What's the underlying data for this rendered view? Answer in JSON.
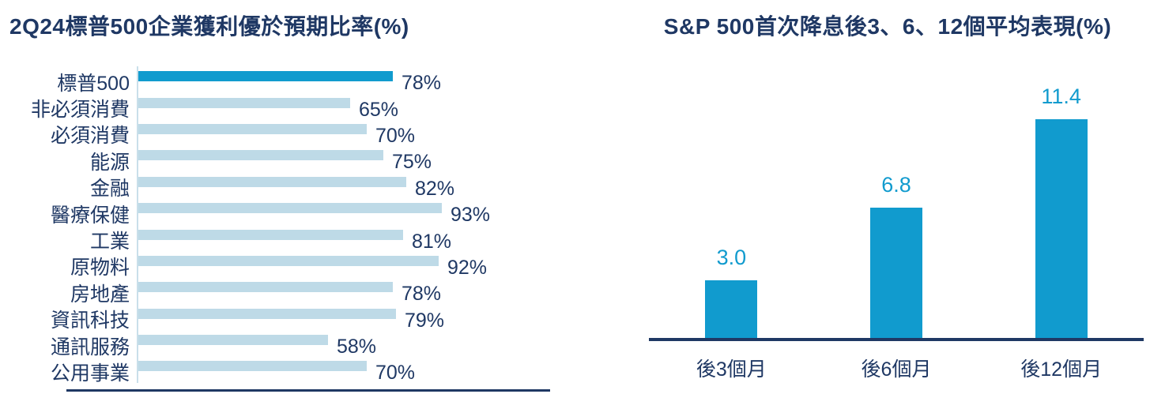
{
  "colors": {
    "navy_text": "#1f3864",
    "accent_cyan": "#119bce",
    "light_blue_bar": "#bedae7",
    "axis_light_blue": "#c9dfea",
    "axis_navy": "#1f3864"
  },
  "chart_data": [
    {
      "type": "bar",
      "orientation": "horizontal",
      "title": "2Q24標普500企業獲利優於預期比率(%)",
      "categories": [
        "標普500",
        "非必須消費",
        "必須消費",
        "能源",
        "金融",
        "醫療保健",
        "工業",
        "原物料",
        "房地產",
        "資訊科技",
        "通訊服務",
        "公用事業"
      ],
      "values": [
        78,
        65,
        70,
        75,
        82,
        93,
        81,
        92,
        78,
        79,
        58,
        70
      ],
      "value_labels": [
        "78%",
        "65%",
        "70%",
        "75%",
        "82%",
        "93%",
        "81%",
        "92%",
        "78%",
        "79%",
        "58%",
        "70%"
      ],
      "highlight_index": 0,
      "highlight_color": "#119bce",
      "bar_color": "#bedae7",
      "text_color": "#1f3864",
      "xlim": [
        0,
        100
      ],
      "grid": false,
      "legend": false,
      "xlabel": "",
      "ylabel": ""
    },
    {
      "type": "bar",
      "orientation": "vertical",
      "title": "S&P 500首次降息後3、6、12個平均表現(%)",
      "categories": [
        "後3個月",
        "後6個月",
        "後12個月"
      ],
      "values": [
        3.0,
        6.8,
        11.4
      ],
      "value_labels": [
        "3.0",
        "6.8",
        "11.4"
      ],
      "bar_color": "#119bce",
      "value_label_color": "#119bce",
      "text_color": "#1f3864",
      "ylim": [
        0,
        12
      ],
      "grid": false,
      "legend": false,
      "xlabel": "",
      "ylabel": ""
    }
  ]
}
